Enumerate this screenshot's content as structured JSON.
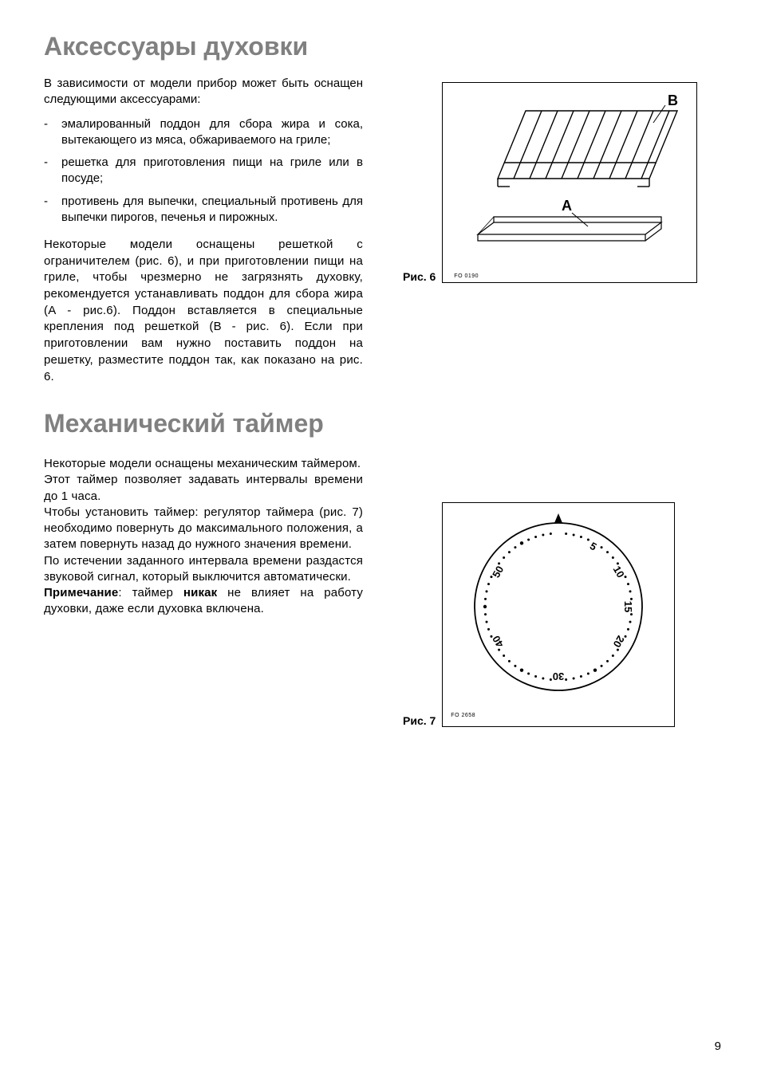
{
  "section1": {
    "title": "Аксессуары духовки",
    "intro": "В зависимости от модели прибор может быть оснащен следующими аксессуарами:",
    "items": [
      "эмалированный поддон для сбора жира и сока, вытекающего из мяса, обжариваемого на гриле;",
      "решетка для приготовления пищи на гриле или в посуде;",
      "противень для выпечки, специальный противень для выпечки пирогов, печенья и пирожных."
    ],
    "body": "Некоторые модели оснащены решеткой с ограничителем (рис. 6), и при приготовлении пищи на гриле, чтобы чрезмерно не загрязнять духовку, рекомендуется устанавливать поддон для сбора жира (A - рис.6). Поддон вставляется в специальные крепления под решеткой (B - рис. 6). Если при приготовлении вам нужно поставить поддон на решетку, разместите поддон так, как показано на рис. 6."
  },
  "section2": {
    "title": "Механический таймер",
    "p1": "Некоторые модели оснащены механическим таймером.",
    "p2": "Этот таймер позволяет задавать интервалы времени до 1 часа.",
    "p3": "Чтобы установить таймер: регулятор таймера (рис. 7) необходимо повернуть до максимального положения, а затем повернуть назад до нужного значения времени.",
    "p4": "По истечении заданного интервала времени раздастся звуковой сигнал, который выключится автоматически.",
    "note_prefix": "Примечание",
    "note_mid": ": таймер ",
    "note_bold2": "никак",
    "note_suffix": " не влияет на работу духовки, даже если духовка включена."
  },
  "fig6": {
    "label": "Рис. 6",
    "code": "FO 0190",
    "markerA": "A",
    "markerB": "B",
    "stroke": "#000000",
    "bg": "#ffffff"
  },
  "fig7": {
    "label": "Рис. 7",
    "code": "FO 2658",
    "ticks": [
      "5",
      "10",
      "15",
      "20",
      "30",
      "40",
      "50"
    ],
    "stroke": "#000000",
    "bg": "#ffffff"
  },
  "page": "9",
  "colors": {
    "heading": "#808080",
    "text": "#000000",
    "background": "#ffffff",
    "border": "#000000"
  }
}
